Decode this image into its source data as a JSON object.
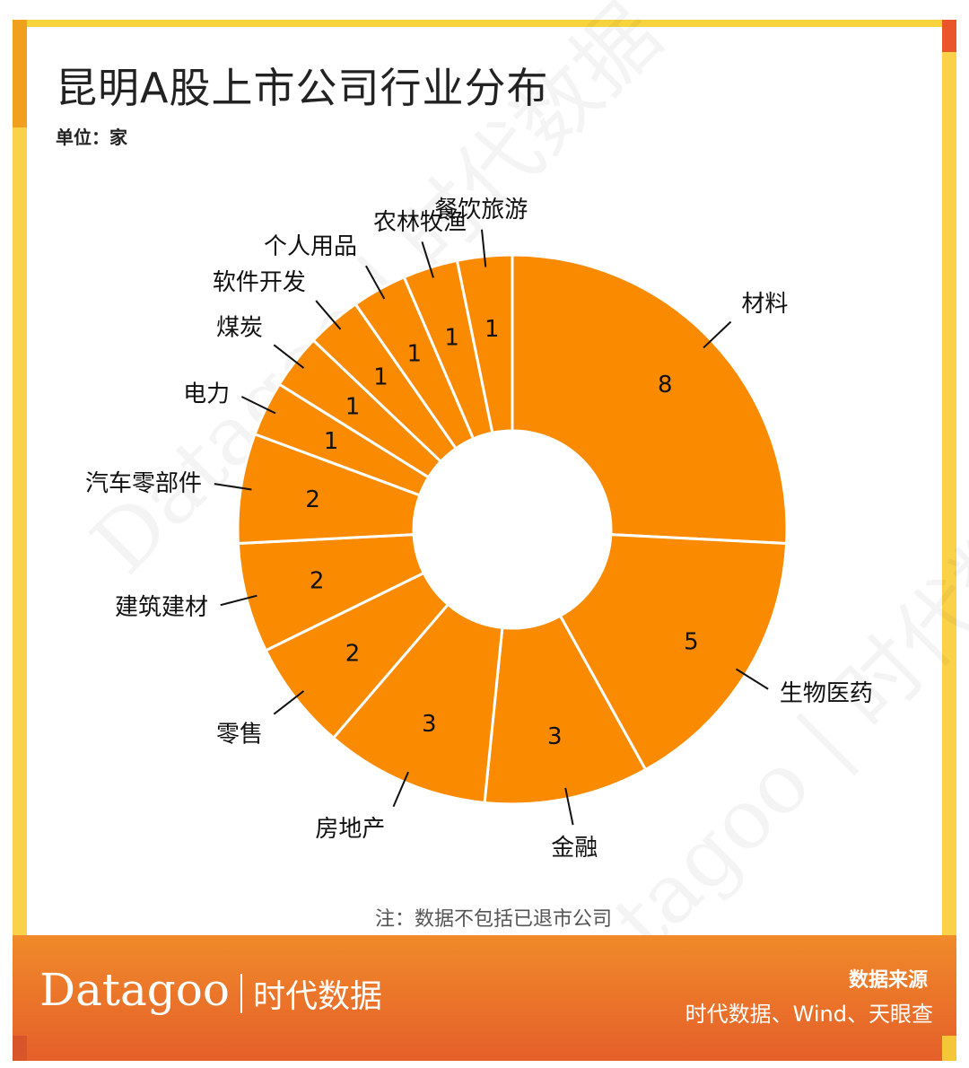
{
  "title": "昆明A股上市公司行业分布",
  "unit": "单位：家",
  "note": "注：数据不包括已退市公司",
  "watermark": "Datagoo | 时代数据",
  "footer": {
    "logo_latin": "Datagoo",
    "logo_cn": "时代数据",
    "source_title": "数据来源",
    "source_text": "时代数据、Wind、天眼查"
  },
  "colors": {
    "slice": "#fa8a00",
    "frame_yellow": "#f9d24a",
    "footer": "#ea702a"
  },
  "chart_data": {
    "type": "pie",
    "variant": "donut",
    "title": "昆明A股上市公司行业分布",
    "unit": "单位：家",
    "categories": [
      "材料",
      "生物医药",
      "金融",
      "房地产",
      "零售",
      "建筑建材",
      "汽车零部件",
      "电力",
      "煤炭",
      "软件开发",
      "个人用品",
      "农林牧渔",
      "餐饮旅游"
    ],
    "values": [
      8,
      5,
      3,
      3,
      2,
      2,
      2,
      1,
      1,
      1,
      1,
      1,
      1
    ]
  }
}
